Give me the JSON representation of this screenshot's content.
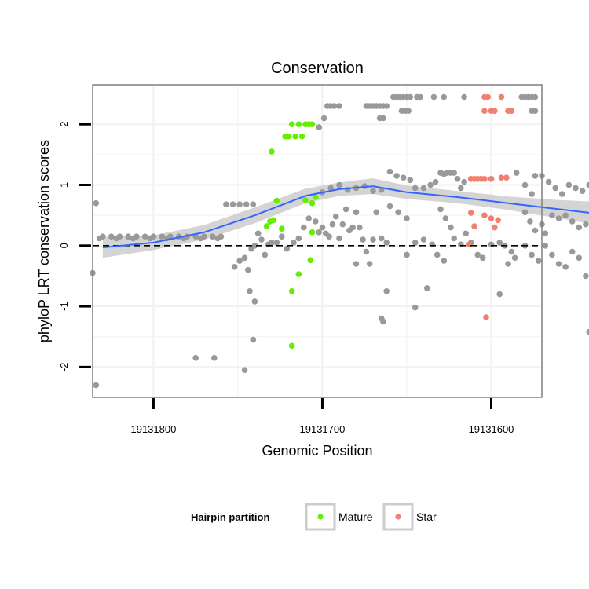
{
  "chart_data": {
    "type": "scatter",
    "title": "Conservation",
    "xlabel": "Genomic Position",
    "ylabel": "phyloP LRT conservation scores",
    "x_reversed": true,
    "xlim": [
      19131836,
      19131570
    ],
    "ylim": [
      -2.5,
      2.65
    ],
    "x_ticks": [
      19131800,
      19131700,
      19131600
    ],
    "x_tick_labels": [
      "19131800",
      "19131700",
      "19131600"
    ],
    "y_ticks": [
      -2,
      -1,
      0,
      1,
      2
    ],
    "y_tick_labels": [
      "-2",
      "-1",
      "0",
      "1",
      "2"
    ],
    "grid": true,
    "reference_line": {
      "y": 0,
      "style": "dashed"
    },
    "legend": {
      "title": "Hairpin partition",
      "position": "bottom",
      "entries": [
        {
          "label": "Mature",
          "color": "#66ee00"
        },
        {
          "label": "Star",
          "color": "#f08070"
        }
      ]
    },
    "colors": {
      "other": "#999999",
      "Mature": "#66ee00",
      "Star": "#f08070",
      "smooth": "#3366ff",
      "band": "#cccccc"
    },
    "series": [
      {
        "name": "Mature",
        "points": [
          [
            19131730,
            1.55
          ],
          [
            19131722,
            1.8
          ],
          [
            19131720,
            1.8
          ],
          [
            19131718,
            2.0
          ],
          [
            19131716,
            1.8
          ],
          [
            19131714,
            2.0
          ],
          [
            19131712,
            1.8
          ],
          [
            19131710,
            2.0
          ],
          [
            19131708,
            2.0
          ],
          [
            19131706,
            2.0
          ],
          [
            19131733,
            0.32
          ],
          [
            19131731,
            0.4
          ],
          [
            19131729,
            0.42
          ],
          [
            19131727,
            0.74
          ],
          [
            19131724,
            0.28
          ],
          [
            19131710,
            0.75
          ],
          [
            19131706,
            0.7
          ],
          [
            19131704,
            0.8
          ],
          [
            19131706,
            0.22
          ],
          [
            19131707,
            -0.24
          ],
          [
            19131714,
            -0.47
          ],
          [
            19131718,
            -0.75
          ],
          [
            19131718,
            -1.65
          ]
        ]
      },
      {
        "name": "Star",
        "points": [
          [
            19131604,
            2.45
          ],
          [
            19131602,
            2.45
          ],
          [
            19131604,
            2.22
          ],
          [
            19131600,
            2.22
          ],
          [
            19131598,
            2.22
          ],
          [
            19131594,
            2.45
          ],
          [
            19131590,
            2.22
          ],
          [
            19131588,
            2.22
          ],
          [
            19131612,
            1.1
          ],
          [
            19131610,
            1.1
          ],
          [
            19131608,
            1.1
          ],
          [
            19131606,
            1.1
          ],
          [
            19131604,
            1.1
          ],
          [
            19131600,
            1.1
          ],
          [
            19131594,
            1.12
          ],
          [
            19131591,
            1.12
          ],
          [
            19131612,
            0.54
          ],
          [
            19131610,
            0.32
          ],
          [
            19131604,
            0.5
          ],
          [
            19131600,
            0.45
          ],
          [
            19131598,
            0.3
          ],
          [
            19131596,
            0.42
          ],
          [
            19131613,
            0.02
          ],
          [
            19131603,
            -1.18
          ]
        ]
      },
      {
        "name": "",
        "points": [
          [
            19131836,
            -0.45
          ],
          [
            19131834,
            0.7
          ],
          [
            19131834,
            -2.3
          ],
          [
            19131830,
            0.15
          ],
          [
            19131825,
            0.15
          ],
          [
            19131820,
            0.15
          ],
          [
            19131815,
            0.15
          ],
          [
            19131810,
            0.15
          ],
          [
            19131805,
            0.15
          ],
          [
            19131800,
            0.15
          ],
          [
            19131795,
            0.15
          ],
          [
            19131790,
            0.15
          ],
          [
            19131785,
            0.15
          ],
          [
            19131780,
            0.15
          ],
          [
            19131775,
            0.15
          ],
          [
            19131770,
            0.15
          ],
          [
            19131765,
            0.15
          ],
          [
            19131760,
            0.15
          ],
          [
            19131832,
            0.12
          ],
          [
            19131822,
            0.12
          ],
          [
            19131812,
            0.12
          ],
          [
            19131802,
            0.12
          ],
          [
            19131792,
            0.12
          ],
          [
            19131782,
            0.12
          ],
          [
            19131772,
            0.12
          ],
          [
            19131762,
            0.12
          ],
          [
            19131775,
            -1.85
          ],
          [
            19131764,
            -1.85
          ],
          [
            19131757,
            0.68
          ],
          [
            19131753,
            0.68
          ],
          [
            19131749,
            0.68
          ],
          [
            19131745,
            0.68
          ],
          [
            19131741,
            0.68
          ],
          [
            19131752,
            -0.35
          ],
          [
            19131749,
            -0.25
          ],
          [
            19131746,
            -0.2
          ],
          [
            19131744,
            -0.4
          ],
          [
            19131742,
            -0.05
          ],
          [
            19131740,
            0.0
          ],
          [
            19131738,
            0.2
          ],
          [
            19131736,
            0.1
          ],
          [
            19131734,
            -0.15
          ],
          [
            19131732,
            0.02
          ],
          [
            19131730,
            0.05
          ],
          [
            19131727,
            0.05
          ],
          [
            19131743,
            -0.75
          ],
          [
            19131740,
            -0.92
          ],
          [
            19131741,
            -1.55
          ],
          [
            19131746,
            -2.05
          ],
          [
            19131724,
            0.15
          ],
          [
            19131721,
            -0.05
          ],
          [
            19131717,
            0.05
          ],
          [
            19131714,
            0.12
          ],
          [
            19131711,
            0.3
          ],
          [
            19131708,
            0.45
          ],
          [
            19131704,
            0.4
          ],
          [
            19131702,
            0.22
          ],
          [
            19131700,
            0.3
          ],
          [
            19131698,
            0.2
          ],
          [
            19131696,
            0.15
          ],
          [
            19131694,
            0.35
          ],
          [
            19131692,
            0.48
          ],
          [
            19131690,
            0.12
          ],
          [
            19131688,
            0.35
          ],
          [
            19131686,
            0.6
          ],
          [
            19131684,
            0.25
          ],
          [
            19131682,
            0.3
          ],
          [
            19131680,
            0.55
          ],
          [
            19131678,
            0.3
          ],
          [
            19131676,
            0.1
          ],
          [
            19131674,
            -0.1
          ],
          [
            19131672,
            -0.3
          ],
          [
            19131670,
            0.1
          ],
          [
            19131668,
            0.55
          ],
          [
            19131665,
            0.12
          ],
          [
            19131662,
            0.05
          ],
          [
            19131702,
            1.95
          ],
          [
            19131699,
            2.1
          ],
          [
            19131697,
            2.3
          ],
          [
            19131695,
            2.3
          ],
          [
            19131693,
            2.3
          ],
          [
            19131690,
            2.3
          ],
          [
            19131674,
            2.3
          ],
          [
            19131672,
            2.3
          ],
          [
            19131670,
            2.3
          ],
          [
            19131668,
            2.3
          ],
          [
            19131666,
            2.3
          ],
          [
            19131664,
            2.3
          ],
          [
            19131662,
            2.3
          ],
          [
            19131666,
            2.1
          ],
          [
            19131664,
            2.1
          ],
          [
            19131658,
            2.45
          ],
          [
            19131656,
            2.45
          ],
          [
            19131654,
            2.45
          ],
          [
            19131652,
            2.45
          ],
          [
            19131650,
            2.45
          ],
          [
            19131648,
            2.45
          ],
          [
            19131644,
            2.45
          ],
          [
            19131642,
            2.45
          ],
          [
            19131634,
            2.45
          ],
          [
            19131628,
            2.45
          ],
          [
            19131616,
            2.45
          ],
          [
            19131582,
            2.45
          ],
          [
            19131580,
            2.45
          ],
          [
            19131578,
            2.45
          ],
          [
            19131576,
            2.45
          ],
          [
            19131574,
            2.45
          ],
          [
            19131653,
            2.22
          ],
          [
            19131651,
            2.22
          ],
          [
            19131649,
            2.22
          ],
          [
            19131576,
            2.22
          ],
          [
            19131574,
            2.22
          ],
          [
            19131700,
            0.88
          ],
          [
            19131695,
            0.95
          ],
          [
            19131690,
            1.0
          ],
          [
            19131685,
            0.92
          ],
          [
            19131680,
            0.95
          ],
          [
            19131675,
            0.98
          ],
          [
            19131670,
            0.9
          ],
          [
            19131665,
            0.92
          ],
          [
            19131660,
            1.22
          ],
          [
            19131656,
            1.15
          ],
          [
            19131652,
            1.12
          ],
          [
            19131648,
            1.08
          ],
          [
            19131645,
            0.95
          ],
          [
            19131640,
            0.95
          ],
          [
            19131636,
            1.0
          ],
          [
            19131633,
            1.05
          ],
          [
            19131630,
            1.2
          ],
          [
            19131628,
            1.18
          ],
          [
            19131626,
            1.2
          ],
          [
            19131624,
            1.2
          ],
          [
            19131622,
            1.2
          ],
          [
            19131620,
            1.1
          ],
          [
            19131618,
            0.95
          ],
          [
            19131616,
            1.05
          ],
          [
            19131585,
            1.2
          ],
          [
            19131580,
            1.0
          ],
          [
            19131576,
            0.85
          ],
          [
            19131574,
            1.15
          ],
          [
            19131570,
            1.15
          ],
          [
            19131566,
            1.05
          ],
          [
            19131562,
            0.95
          ],
          [
            19131558,
            0.85
          ],
          [
            19131554,
            1.0
          ],
          [
            19131550,
            0.95
          ],
          [
            19131546,
            0.9
          ],
          [
            19131542,
            1.0
          ],
          [
            19131538,
            1.05
          ],
          [
            19131535,
            0.92
          ],
          [
            19131580,
            0.55
          ],
          [
            19131577,
            0.4
          ],
          [
            19131574,
            0.25
          ],
          [
            19131570,
            0.35
          ],
          [
            19131568,
            0.2
          ],
          [
            19131564,
            0.5
          ],
          [
            19131560,
            0.45
          ],
          [
            19131556,
            0.5
          ],
          [
            19131552,
            0.4
          ],
          [
            19131548,
            0.3
          ],
          [
            19131544,
            0.35
          ],
          [
            19131540,
            0.2
          ],
          [
            19131538,
            0.5
          ],
          [
            19131536,
            0.52
          ],
          [
            19131660,
            0.65
          ],
          [
            19131655,
            0.55
          ],
          [
            19131650,
            0.45
          ],
          [
            19131645,
            0.05
          ],
          [
            19131640,
            0.1
          ],
          [
            19131635,
            0.02
          ],
          [
            19131630,
            0.6
          ],
          [
            19131627,
            0.45
          ],
          [
            19131624,
            0.3
          ],
          [
            19131622,
            0.12
          ],
          [
            19131618,
            0.02
          ],
          [
            19131615,
            0.2
          ],
          [
            19131612,
            0.05
          ],
          [
            19131608,
            -0.15
          ],
          [
            19131605,
            -0.2
          ],
          [
            19131600,
            0.02
          ],
          [
            19131595,
            0.05
          ],
          [
            19131592,
            0.0
          ],
          [
            19131588,
            -0.1
          ],
          [
            19131595,
            -0.8
          ],
          [
            19131590,
            -0.3
          ],
          [
            19131586,
            -0.2
          ],
          [
            19131580,
            0.0
          ],
          [
            19131576,
            -0.15
          ],
          [
            19131572,
            -0.25
          ],
          [
            19131568,
            0.0
          ],
          [
            19131564,
            -0.15
          ],
          [
            19131560,
            -0.3
          ],
          [
            19131556,
            -0.35
          ],
          [
            19131552,
            -0.1
          ],
          [
            19131548,
            -0.2
          ],
          [
            19131544,
            -0.5
          ],
          [
            19131540,
            -0.65
          ],
          [
            19131542,
            -1.42
          ],
          [
            19131680,
            -0.3
          ],
          [
            19131665,
            -1.2
          ],
          [
            19131664,
            -1.25
          ],
          [
            19131662,
            -0.75
          ],
          [
            19131650,
            -0.15
          ],
          [
            19131645,
            -1.02
          ],
          [
            19131638,
            -0.7
          ],
          [
            19131632,
            -0.15
          ],
          [
            19131628,
            -0.25
          ]
        ]
      }
    ],
    "smooth_line": {
      "x": [
        19131830,
        19131800,
        19131770,
        19131740,
        19131710,
        19131690,
        19131670,
        19131650,
        19131620,
        19131590,
        19131560,
        19131535
      ],
      "y": [
        -0.03,
        0.05,
        0.22,
        0.5,
        0.82,
        0.93,
        0.98,
        0.88,
        0.8,
        0.7,
        0.6,
        0.52
      ],
      "lower": [
        -0.2,
        -0.07,
        0.1,
        0.37,
        0.7,
        0.82,
        0.85,
        0.77,
        0.7,
        0.59,
        0.45,
        0.33
      ],
      "upper": [
        0.14,
        0.17,
        0.34,
        0.63,
        0.94,
        1.04,
        1.11,
        0.99,
        0.9,
        0.81,
        0.75,
        0.72
      ]
    }
  }
}
